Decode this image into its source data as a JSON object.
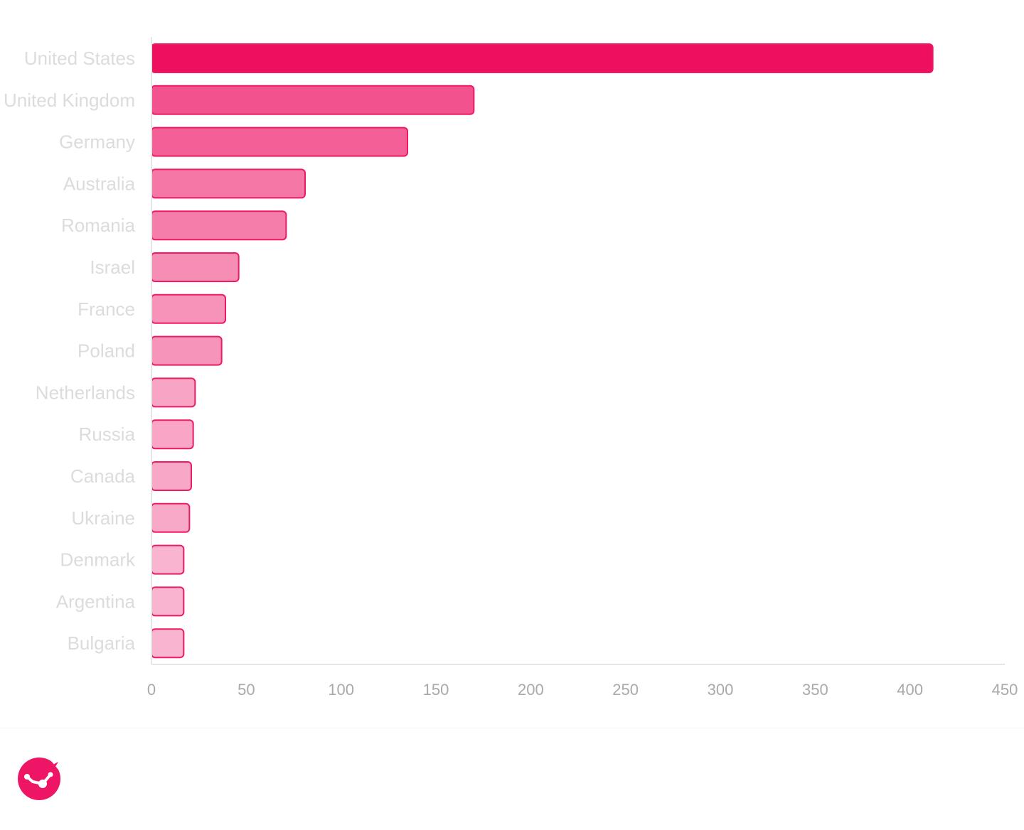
{
  "chart_data": {
    "type": "bar",
    "orientation": "horizontal",
    "categories": [
      "United States",
      "United Kingdom",
      "Germany",
      "Australia",
      "Romania",
      "Israel",
      "France",
      "Poland",
      "Netherlands",
      "Russia",
      "Canada",
      "Ukraine",
      "Denmark",
      "Argentina",
      "Bulgaria"
    ],
    "values": [
      412,
      170,
      135,
      81,
      71,
      46,
      39,
      37,
      23,
      22,
      21,
      20,
      17,
      17,
      17
    ],
    "xlim": [
      0,
      450
    ],
    "xticks": [
      0,
      50,
      100,
      150,
      200,
      250,
      300,
      350,
      400,
      450
    ],
    "grid": false,
    "legend": "none",
    "colors": {
      "max_fill": "#ee0f5f",
      "min_fill": "#f9b4d0",
      "stroke": "#ee1a66",
      "axis": "#e6e6e6",
      "category_text": "#dcdcdc",
      "tick_text": "#a9a9a9"
    }
  },
  "brand": {
    "logo_icon": "chart-logo-icon",
    "color": "#ee1466"
  }
}
